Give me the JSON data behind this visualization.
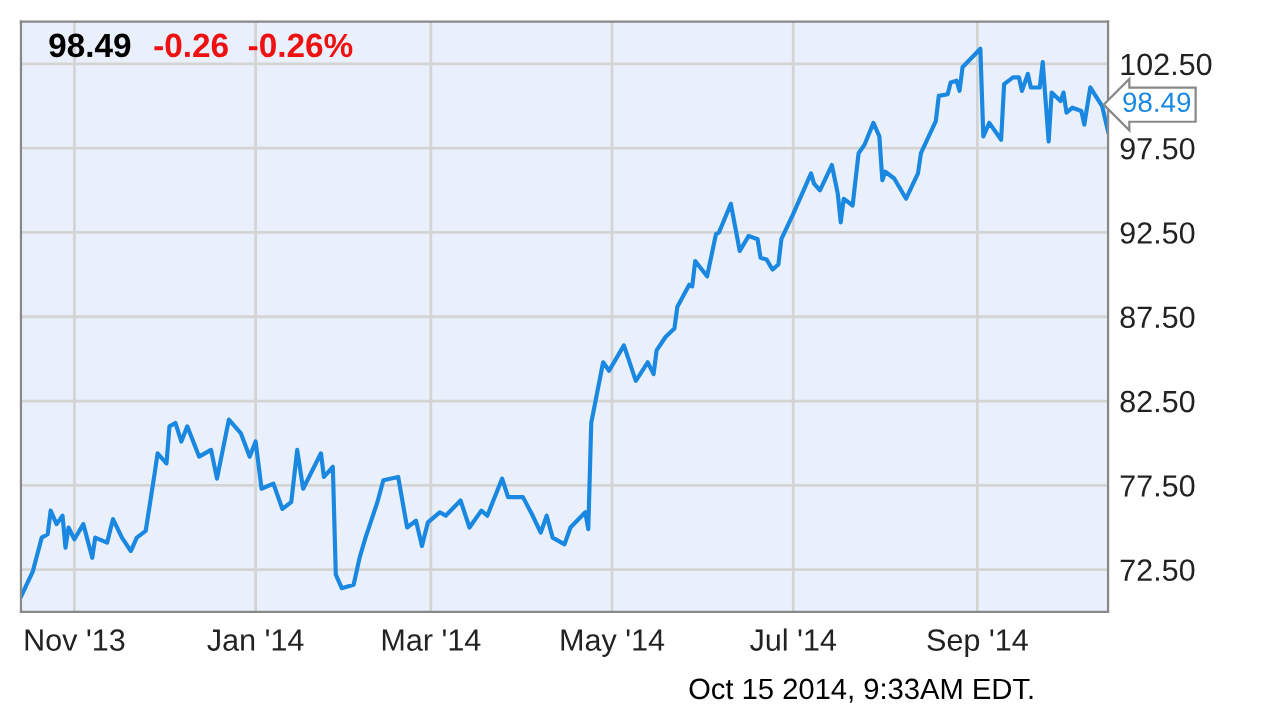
{
  "chart_data": {
    "type": "line",
    "title": "98.49",
    "subtitle": "-0.26  -0.26%",
    "x": [
      "2013-10-14",
      "2013-10-18",
      "2013-10-21",
      "2013-10-23",
      "2013-10-24",
      "2013-10-26",
      "2013-10-28",
      "2013-10-29",
      "2013-10-30",
      "2013-11-01",
      "2013-11-04",
      "2013-11-07",
      "2013-11-08",
      "2013-11-12",
      "2013-11-14",
      "2013-11-17",
      "2013-11-20",
      "2013-11-22",
      "2013-11-25",
      "2013-11-28",
      "2013-11-29",
      "2013-12-02",
      "2013-12-03",
      "2013-12-05",
      "2013-12-07",
      "2013-12-09",
      "2013-12-13",
      "2013-12-17",
      "2013-12-19",
      "2013-12-23",
      "2013-12-27",
      "2013-12-30",
      "2014-01-01",
      "2014-01-03",
      "2014-01-07",
      "2014-01-10",
      "2014-01-13",
      "2014-01-15",
      "2014-01-17",
      "2014-01-23",
      "2014-01-24",
      "2014-01-27",
      "2014-01-28",
      "2014-01-30",
      "2014-02-03",
      "2014-02-05",
      "2014-02-07",
      "2014-02-11",
      "2014-02-13",
      "2014-02-18",
      "2014-02-21",
      "2014-02-24",
      "2014-02-26",
      "2014-02-28",
      "2014-03-04",
      "2014-03-06",
      "2014-03-11",
      "2014-03-14",
      "2014-03-18",
      "2014-03-20",
      "2014-03-25",
      "2014-03-27",
      "2014-04-01",
      "2014-04-04",
      "2014-04-07",
      "2014-04-09",
      "2014-04-11",
      "2014-04-15",
      "2014-04-17",
      "2014-04-22",
      "2014-04-23",
      "2014-04-24",
      "2014-04-28",
      "2014-04-30",
      "2014-05-05",
      "2014-05-09",
      "2014-05-13",
      "2014-05-15",
      "2014-05-16",
      "2014-05-19",
      "2014-05-22",
      "2014-05-23",
      "2014-05-27",
      "2014-05-28",
      "2014-05-29",
      "2014-06-02",
      "2014-06-05",
      "2014-06-06",
      "2014-06-10",
      "2014-06-13",
      "2014-06-16",
      "2014-06-19",
      "2014-06-20",
      "2014-06-22",
      "2014-06-24",
      "2014-06-26",
      "2014-06-27",
      "2014-07-01",
      "2014-07-07",
      "2014-07-08",
      "2014-07-10",
      "2014-07-14",
      "2014-07-16",
      "2014-07-17",
      "2014-07-18",
      "2014-07-21",
      "2014-07-23",
      "2014-07-25",
      "2014-07-28",
      "2014-07-30",
      "2014-07-31",
      "2014-08-01",
      "2014-08-04",
      "2014-08-08",
      "2014-08-12",
      "2014-08-13",
      "2014-08-18",
      "2014-08-19",
      "2014-08-22",
      "2014-08-23",
      "2014-08-25",
      "2014-08-26",
      "2014-08-27",
      "2014-09-02",
      "2014-09-03",
      "2014-09-05",
      "2014-09-09",
      "2014-09-10",
      "2014-09-13",
      "2014-09-15",
      "2014-09-16",
      "2014-09-18",
      "2014-09-19",
      "2014-09-22",
      "2014-09-23",
      "2014-09-25",
      "2014-09-26",
      "2014-09-29",
      "2014-09-30",
      "2014-10-01",
      "2014-10-03",
      "2014-10-06",
      "2014-10-07",
      "2014-10-09",
      "2014-10-13",
      "2014-10-15"
    ],
    "series": [
      {
        "color": "#1a88e0",
        "values": [
          70.9,
          72.4,
          74.4,
          74.6,
          76.0,
          75.2,
          75.7,
          73.8,
          75.0,
          74.3,
          75.2,
          73.2,
          74.4,
          74.1,
          75.5,
          74.4,
          73.6,
          74.4,
          74.8,
          78.2,
          79.4,
          78.8,
          81.0,
          81.2,
          80.1,
          81.0,
          79.2,
          79.6,
          77.9,
          81.4,
          80.6,
          79.2,
          80.1,
          77.3,
          77.6,
          76.1,
          76.5,
          79.6,
          77.3,
          79.4,
          78.0,
          78.6,
          72.2,
          71.4,
          71.6,
          73.2,
          74.4,
          76.5,
          77.8,
          78.0,
          75.0,
          75.4,
          73.9,
          75.3,
          75.9,
          75.7,
          76.6,
          75.0,
          76.0,
          75.7,
          77.9,
          76.8,
          76.8,
          75.8,
          74.7,
          75.7,
          74.4,
          74.0,
          75.0,
          75.9,
          74.9,
          81.2,
          84.8,
          84.3,
          85.8,
          83.7,
          84.8,
          84.1,
          85.5,
          86.3,
          86.8,
          88.1,
          89.4,
          89.3,
          90.8,
          89.9,
          92.4,
          92.5,
          94.2,
          91.4,
          92.3,
          92.1,
          91.0,
          90.9,
          90.3,
          90.6,
          92.1,
          93.6,
          96.0,
          95.4,
          95.0,
          96.5,
          94.8,
          93.1,
          94.5,
          94.1,
          97.2,
          97.7,
          99.0,
          98.2,
          95.6,
          96.1,
          95.7,
          94.5,
          96.0,
          97.2,
          99.1,
          100.6,
          100.7,
          101.4,
          101.5,
          100.9,
          102.3,
          103.4,
          98.2,
          99.0,
          98.0,
          101.3,
          101.7,
          101.7,
          100.9,
          101.9,
          101.1,
          101.1,
          102.6,
          97.9,
          100.8,
          100.3,
          100.8,
          99.6,
          99.9,
          99.7,
          98.9,
          101.1,
          100.0,
          98.49
        ]
      }
    ],
    "xlim": [
      "2013-10-14",
      "2014-10-15"
    ],
    "xticks": [
      {
        "value": "2013-11-01",
        "label": "Nov '13"
      },
      {
        "value": "2014-01-01",
        "label": "Jan '14"
      },
      {
        "value": "2014-03-01",
        "label": "Mar '14"
      },
      {
        "value": "2014-05-01",
        "label": "May '14"
      },
      {
        "value": "2014-07-01",
        "label": "Jul '14"
      },
      {
        "value": "2014-09-01",
        "label": "Sep '14"
      }
    ],
    "ylim": [
      70,
      105
    ],
    "yticks": [
      {
        "value": 72.5,
        "label": "72.50"
      },
      {
        "value": 77.5,
        "label": "77.50"
      },
      {
        "value": 82.5,
        "label": "82.50"
      },
      {
        "value": 87.5,
        "label": "87.50"
      },
      {
        "value": 92.5,
        "label": "92.50"
      },
      {
        "value": 97.5,
        "label": "97.50"
      },
      {
        "value": 102.5,
        "label": "102.50"
      }
    ],
    "grid": true,
    "annotations": [
      {
        "text": "98.49",
        "x": "2014-10-15",
        "y": 98.49
      },
      "Oct 15 2014, 9:33AM EDT."
    ]
  }
}
